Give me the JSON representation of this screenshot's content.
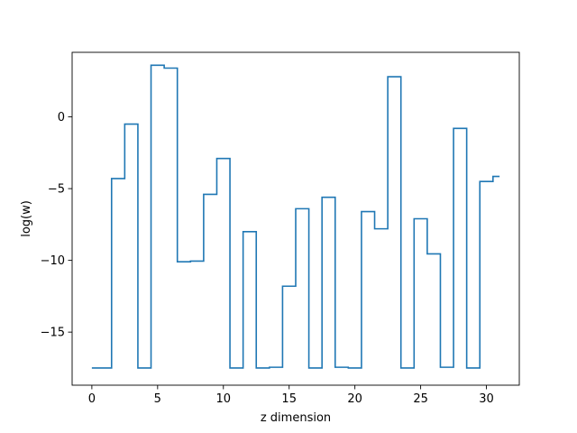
{
  "chart_data": {
    "type": "line",
    "drawstyle": "steps-mid",
    "xlabel": "z dimension",
    "ylabel": "log(w)",
    "xlim": [
      -1.5,
      32.5
    ],
    "ylim": [
      -18.7,
      4.5
    ],
    "xticks": [
      0,
      5,
      10,
      15,
      20,
      25,
      30
    ],
    "yticks": [
      -15,
      -10,
      -5,
      0
    ],
    "ytick_labels": [
      "−15",
      "−10",
      "−5",
      "0"
    ],
    "grid": false,
    "series": [
      {
        "color": "#1f77b4",
        "x": [
          0,
          1,
          2,
          3,
          4,
          5,
          6,
          7,
          8,
          9,
          10,
          11,
          12,
          13,
          14,
          15,
          16,
          17,
          18,
          19,
          20,
          21,
          22,
          23,
          24,
          25,
          26,
          27,
          28,
          29,
          30,
          31
        ],
        "y": [
          -17.5,
          -17.5,
          -4.3,
          -0.5,
          -17.5,
          3.6,
          3.4,
          -10.1,
          -10.05,
          -5.4,
          -2.9,
          -17.5,
          -8.0,
          -17.5,
          -17.45,
          -11.8,
          -6.4,
          -17.5,
          -5.6,
          -17.45,
          -17.5,
          -6.6,
          -7.8,
          2.8,
          -17.5,
          -7.1,
          -9.55,
          -17.45,
          -0.8,
          -17.5,
          -4.5,
          -4.15
        ]
      }
    ]
  }
}
